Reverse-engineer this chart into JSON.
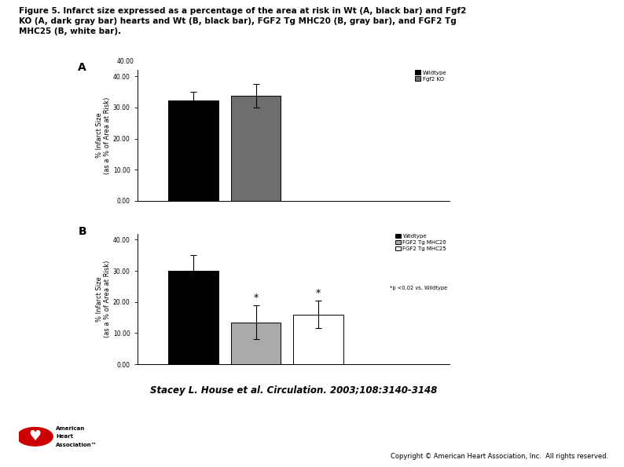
{
  "title_line1": "Figure 5. Infarct size expressed as a percentage of the area at risk in Wt (A, black bar) and Fgf2",
  "title_line2": "KO (A, dark gray bar) hearts and Wt (B, black bar), FGF2 Tg MHC20 (B, gray bar), and FGF2 Tg",
  "title_line3": "MHC25 (B, white bar).",
  "citation": "Stacey L. House et al. Circulation. 2003;108:3140-3148",
  "panel_A": {
    "label": "A",
    "bars": [
      {
        "label": "Wildtype",
        "value": 32.2,
        "error": 2.8,
        "color": "#000000"
      },
      {
        "label": "Fgf2 KO",
        "value": 33.8,
        "error": 3.8,
        "color": "#6e6e6e"
      }
    ],
    "ylabel": "% Infarct Size\n(as a % of Area at Risk)",
    "ylim": [
      0,
      42
    ],
    "yticks": [
      0,
      10,
      20,
      30,
      40
    ],
    "ytick_labels": [
      "0.00",
      "10.00",
      "20.00",
      "30.00",
      "40.00"
    ],
    "y_top_label": "40.00",
    "bar_positions": [
      0.18,
      0.38
    ],
    "bar_width": 0.16
  },
  "panel_B": {
    "label": "B",
    "bars": [
      {
        "label": "Wildtype",
        "value": 30.0,
        "error": 5.0,
        "color": "#000000"
      },
      {
        "label": "FGF2 Tg MHC20",
        "value": 13.5,
        "error": 5.5,
        "color": "#aaaaaa"
      },
      {
        "label": "FGF2 Tg MHC25",
        "value": 16.0,
        "error": 4.5,
        "color": "#ffffff"
      }
    ],
    "asterisk_bars": [
      1,
      2
    ],
    "ylabel": "% Infarct Size\n(as a % of Area at Risk)",
    "ylim": [
      0,
      42
    ],
    "yticks": [
      0,
      10,
      20,
      30,
      40
    ],
    "ytick_labels": [
      "0.00",
      "10.00",
      "20.00",
      "30.00",
      "40.00"
    ],
    "legend_note": "*p <0.02 vs. Wildtype",
    "bar_positions": [
      0.18,
      0.38,
      0.58
    ],
    "bar_width": 0.16
  }
}
